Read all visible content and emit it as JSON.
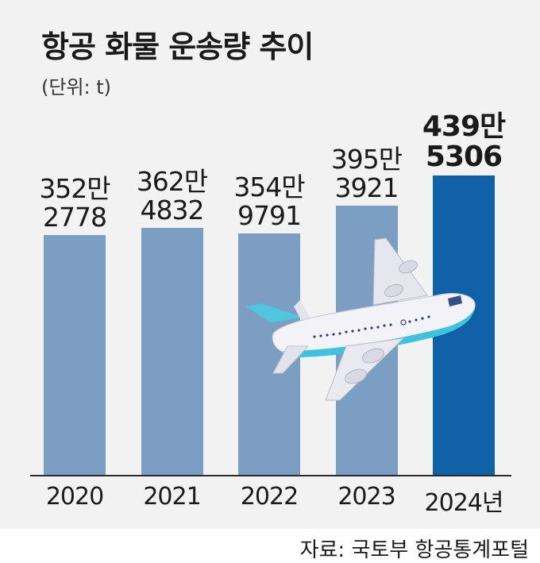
{
  "chart_data": {
    "type": "bar",
    "title": "항공 화물 운송량 추이",
    "unit_note": "(단위: t)",
    "categories": [
      "2020",
      "2021",
      "2022",
      "2023",
      "2024년"
    ],
    "values": [
      3522778,
      3624832,
      3549791,
      3953921,
      4395306
    ],
    "value_labels": [
      [
        "352만",
        "2778"
      ],
      [
        "362만",
        "4832"
      ],
      [
        "354만",
        "9791"
      ],
      [
        "395만",
        "3921"
      ],
      [
        "439만",
        "5306"
      ]
    ],
    "highlight_index": 4,
    "colors": {
      "bar": "#7b9ec2",
      "highlight": "#1060a8",
      "background": "#f2f2f2"
    },
    "source": "자료: 국토부 항공통계포털"
  },
  "illustration": {
    "name": "airplane-icon"
  }
}
